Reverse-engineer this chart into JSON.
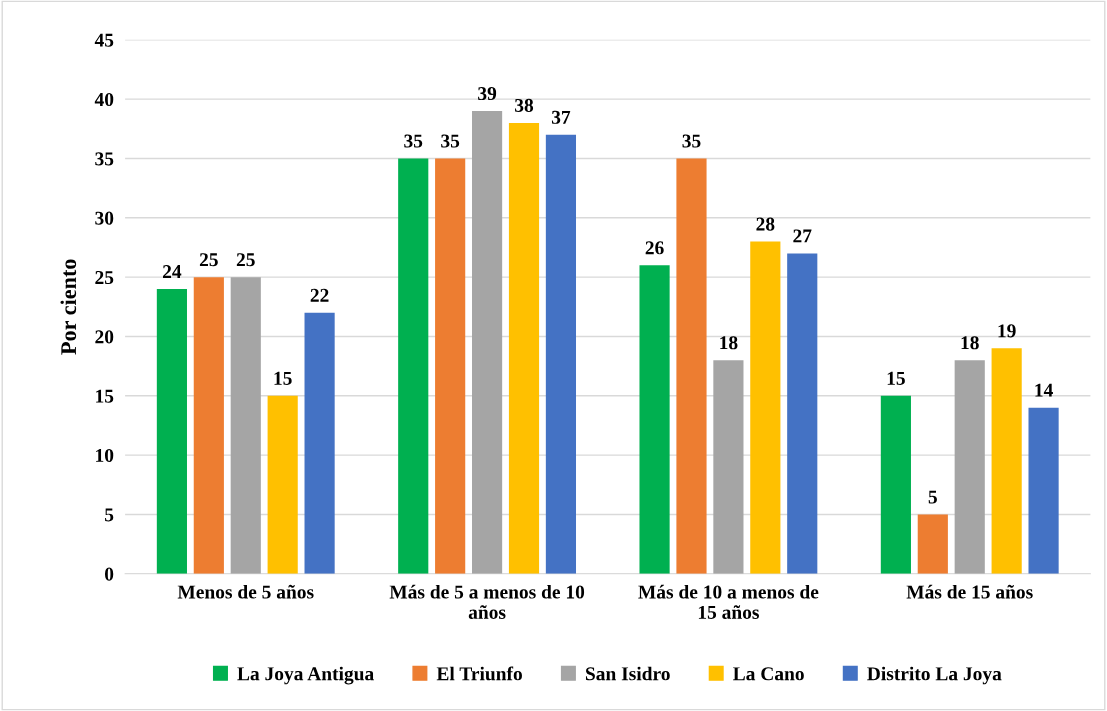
{
  "chart_data": {
    "type": "bar",
    "ylabel": "Por ciento",
    "categories": [
      "Menos de 5 años",
      "Más de 5 a menos de 10\naños",
      "Más de 10 a menos de\n15 años",
      "Más de 15 años"
    ],
    "series": [
      {
        "name": "La Joya Antigua",
        "color": "#00b050",
        "values": [
          24,
          35,
          26,
          15
        ]
      },
      {
        "name": "El Triunfo",
        "color": "#ed7d31",
        "values": [
          25,
          35,
          35,
          5
        ]
      },
      {
        "name": "San Isidro",
        "color": "#a5a5a5",
        "values": [
          25,
          39,
          18,
          18
        ]
      },
      {
        "name": "La Cano",
        "color": "#ffc000",
        "values": [
          15,
          38,
          28,
          19
        ]
      },
      {
        "name": "Distrito La Joya",
        "color": "#4472c4",
        "values": [
          22,
          37,
          27,
          14
        ]
      }
    ],
    "ylim": [
      0,
      45
    ],
    "yticks": [
      0,
      5,
      10,
      15,
      20,
      25,
      30,
      35,
      40,
      45
    ],
    "grid": "y",
    "legend": "bottom",
    "data_labels": true
  }
}
